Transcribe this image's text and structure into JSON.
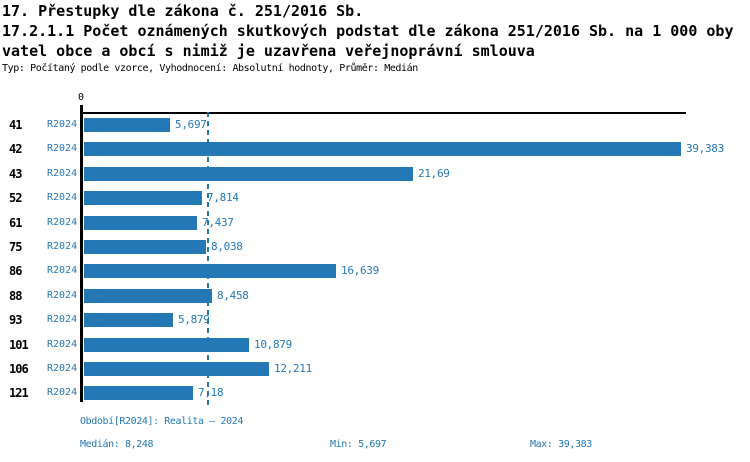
{
  "header": {
    "title_line1": "17. Přestupky dle zákona č. 251/2016 Sb.",
    "title_line2": "17.2.1.1 Počet oznámených skutkových podstat dle zákona 251/2016 Sb. na 1 000 oby",
    "title_line3": "vatel obce a obcí s nimiž je uzavřena veřejnoprávní smlouva",
    "subtitle": "Typ: Počítaný podle vzorce, Vyhodnocení: Absolutní hodnoty, Průměr: Medián"
  },
  "chart_data": {
    "type": "bar",
    "orientation": "horizontal",
    "title": "17.2.1.1 Počet oznámených skutkových podstat dle zákona 251/2016 Sb. na 1 000 obyvatel obce a obcí s nimiž je uzavřena veřejnoprávní smlouva",
    "series_label": "R2024",
    "categories": [
      "41",
      "42",
      "43",
      "52",
      "61",
      "75",
      "86",
      "88",
      "93",
      "101",
      "106",
      "121"
    ],
    "values": [
      5.697,
      39.383,
      21.69,
      7.814,
      7.437,
      8.038,
      16.639,
      8.458,
      5.879,
      10.879,
      12.211,
      7.18
    ],
    "value_labels": [
      "5,697",
      "39,383",
      "21,69",
      "7,814",
      "7,437",
      "8,038",
      "16,639",
      "8,458",
      "5,879",
      "10,879",
      "12,211",
      "7,18"
    ],
    "axis_origin_label": "0",
    "xlim": [
      0,
      39.7
    ],
    "median": 8.248,
    "grid": false,
    "legend_position": "none",
    "bar_color": "#2478b4",
    "median_line_color": "#2478b4",
    "axis_color": "#000000",
    "label_color": "#2478b4"
  },
  "footer": {
    "period": "Období[R2024]: Realita – 2024",
    "median": "Medián: 8,248",
    "min": "Min: 5,697",
    "max": "Max: 39,383"
  }
}
